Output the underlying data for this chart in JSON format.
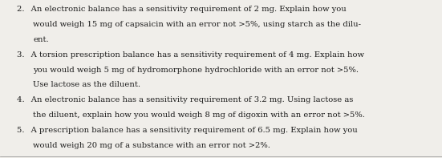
{
  "background_color": "#f0eeea",
  "text_color": "#1a1a1a",
  "figsize": [
    5.51,
    1.97
  ],
  "dpi": 100,
  "fontsize": 7.2,
  "font_family": "serif",
  "items": [
    {
      "number": "2.",
      "indent1": 0.04,
      "indent2": 0.075,
      "lines": [
        "2.  An electronic balance has a sensitivity requirement of 2 mg. Explain how you",
        "would weigh 15 mg of capsaicin with an error not >5%, using starch as the dilu-",
        "ent."
      ]
    },
    {
      "number": "3.",
      "lines": [
        "3.  A torsion prescription balance has a sensitivity requirement of 4 mg. Explain how",
        "you would weigh 5 mg of hydromorphone hydrochloride with an error not >5%.",
        "Use lactose as the diluent."
      ]
    },
    {
      "number": "4.",
      "lines": [
        "4.  An electronic balance has a sensitivity requirement of 3.2 mg. Using lactose as",
        "the diluent, explain how you would weigh 8 mg of digoxin with an error not >5%."
      ]
    },
    {
      "number": "5.",
      "lines": [
        "5.  A prescription balance has a sensitivity requirement of 6.5 mg. Explain how you",
        "would weigh 20 mg of a substance with an error not >2%."
      ]
    }
  ],
  "all_lines": [
    [
      0.038,
      "2.  An electronic balance has a sensitivity requirement of 2 mg. Explain how you"
    ],
    [
      0.075,
      "would weigh 15 mg of capsaicin with an error not >5%, using starch as the dilu-"
    ],
    [
      0.075,
      "ent."
    ],
    [
      0.038,
      "3.  A torsion prescription balance has a sensitivity requirement of 4 mg. Explain how"
    ],
    [
      0.075,
      "you would weigh 5 mg of hydromorphone hydrochloride with an error not >5%."
    ],
    [
      0.075,
      "Use lactose as the diluent."
    ],
    [
      0.038,
      "4.  An electronic balance has a sensitivity requirement of 3.2 mg. Using lactose as"
    ],
    [
      0.075,
      "the diluent, explain how you would weigh 8 mg of digoxin with an error not >5%."
    ],
    [
      0.038,
      "5.  A prescription balance has a sensitivity requirement of 6.5 mg. Explain how you"
    ],
    [
      0.075,
      "would weigh 20 mg of a substance with an error not >2%."
    ]
  ]
}
